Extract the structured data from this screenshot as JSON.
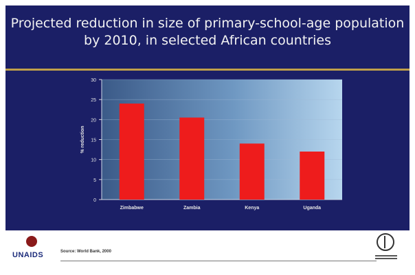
{
  "title": "Projected reduction in size of primary-school-age population by 2010, in selected African countries",
  "footer": {
    "source": "Source: World Bank, 2000",
    "unaids_label": "UNAIDS"
  },
  "colors": {
    "panel": "#1b1f66",
    "bar": "#ee1c1c",
    "accent_rule": "#c0a04a"
  },
  "chart_data": {
    "type": "bar",
    "categories": [
      "Zimbabwe",
      "Zambia",
      "Kenya",
      "Uganda"
    ],
    "values": [
      24,
      20.5,
      14,
      12
    ],
    "xlabel": "",
    "ylabel": "% reduction",
    "ylim": [
      0,
      30
    ],
    "yticks": [
      0,
      5,
      10,
      15,
      20,
      25,
      30
    ],
    "grid": true
  }
}
